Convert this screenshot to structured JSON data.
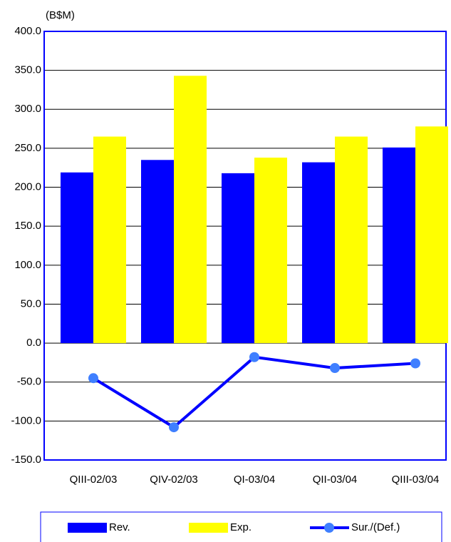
{
  "chart_data": {
    "type": "bar",
    "ylabel": "(B$M)",
    "categories": [
      "QIII-02/03",
      "QIV-02/03",
      "QI-03/04",
      "QII-03/04",
      "QIII-03/04"
    ],
    "series": [
      {
        "name": "Rev.",
        "color": "#0000ff",
        "type": "bar",
        "values": [
          219,
          235,
          218,
          232,
          251
        ]
      },
      {
        "name": "Exp.",
        "color": "#ffff00",
        "type": "bar",
        "values": [
          265,
          343,
          238,
          265,
          278
        ]
      },
      {
        "name": "Sur./(Def.)",
        "color": "#0000ff",
        "marker_color": "#3f7fff",
        "type": "line",
        "values": [
          -45,
          -108,
          -18,
          -32,
          -26
        ]
      }
    ],
    "ylim": [
      -150,
      400
    ],
    "yticks": [
      {
        "value": -150,
        "label": "-150.0"
      },
      {
        "value": -100,
        "label": "-100.0"
      },
      {
        "value": -50,
        "label": "-50.0"
      },
      {
        "value": 0,
        "label": "0.0"
      },
      {
        "value": 50,
        "label": "50.0"
      },
      {
        "value": 100,
        "label": "100.0"
      },
      {
        "value": 150,
        "label": "150.0"
      },
      {
        "value": 200,
        "label": "200.0"
      },
      {
        "value": 250,
        "label": "250.0"
      },
      {
        "value": 300,
        "label": "300.0"
      },
      {
        "value": 350,
        "label": "350.0"
      },
      {
        "value": 400,
        "label": "400.0"
      }
    ],
    "grid": true,
    "legend": "bottom"
  }
}
